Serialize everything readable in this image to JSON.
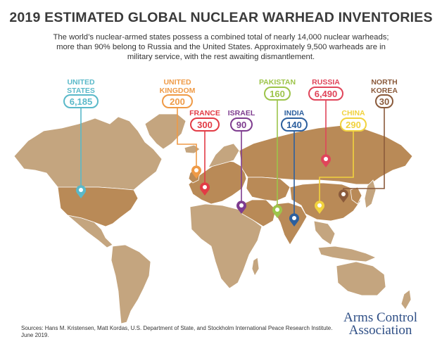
{
  "title": "2019 ESTIMATED GLOBAL NUCLEAR WARHEAD INVENTORIES",
  "subtitle_line1": "The world’s nuclear-armed states possess a combined total of nearly 14,000 nuclear warheads;",
  "subtitle_line2": "more than 90% belong to Russia and the United States. Approximately 9,500 warheads are in",
  "subtitle_line3": "military service, with the rest awaiting dismantlement.",
  "colors": {
    "land": "#c4a57f",
    "land_highlight": "#b98a57",
    "border": "#ffffff",
    "united_states": "#5ab9c9",
    "united_kingdom": "#ef9a46",
    "france": "#e23b45",
    "israel": "#7e3c8f",
    "pakistan": "#9dc44a",
    "india": "#2c5f9e",
    "russia": "#e0455a",
    "china": "#f1d23e",
    "north_korea": "#8a5a3b"
  },
  "countries": [
    {
      "key": "us",
      "name_line1": "UNITED",
      "name_line2": "STATES",
      "count": "6,185",
      "color": "#5ab9c9"
    },
    {
      "key": "uk",
      "name_line1": "UNITED",
      "name_line2": "KINGDOM",
      "count": "200",
      "color": "#ef9a46"
    },
    {
      "key": "fr",
      "name_line1": "FRANCE",
      "name_line2": "",
      "count": "300",
      "color": "#e23b45"
    },
    {
      "key": "il",
      "name_line1": "ISRAEL",
      "name_line2": "",
      "count": "90",
      "color": "#7e3c8f"
    },
    {
      "key": "pk",
      "name_line1": "PAKISTAN",
      "name_line2": "",
      "count": "160",
      "color": "#9dc44a"
    },
    {
      "key": "in",
      "name_line1": "INDIA",
      "name_line2": "",
      "count": "140",
      "color": "#2c5f9e"
    },
    {
      "key": "ru",
      "name_line1": "RUSSIA",
      "name_line2": "",
      "count": "6,490",
      "color": "#e0455a"
    },
    {
      "key": "cn",
      "name_line1": "CHINA",
      "name_line2": "",
      "count": "290",
      "color": "#f1d23e"
    },
    {
      "key": "kp",
      "name_line1": "NORTH",
      "name_line2": "KOREA",
      "count": "30",
      "color": "#8a5a3b"
    }
  ],
  "sources": "Sources: Hans M. Kristensen, Matt Kordas, U.S. Department of State, and Stockholm International Peace Research Institute.",
  "date": "June 2019.",
  "logo": {
    "line1": "Arms Control",
    "line2": "Association"
  }
}
